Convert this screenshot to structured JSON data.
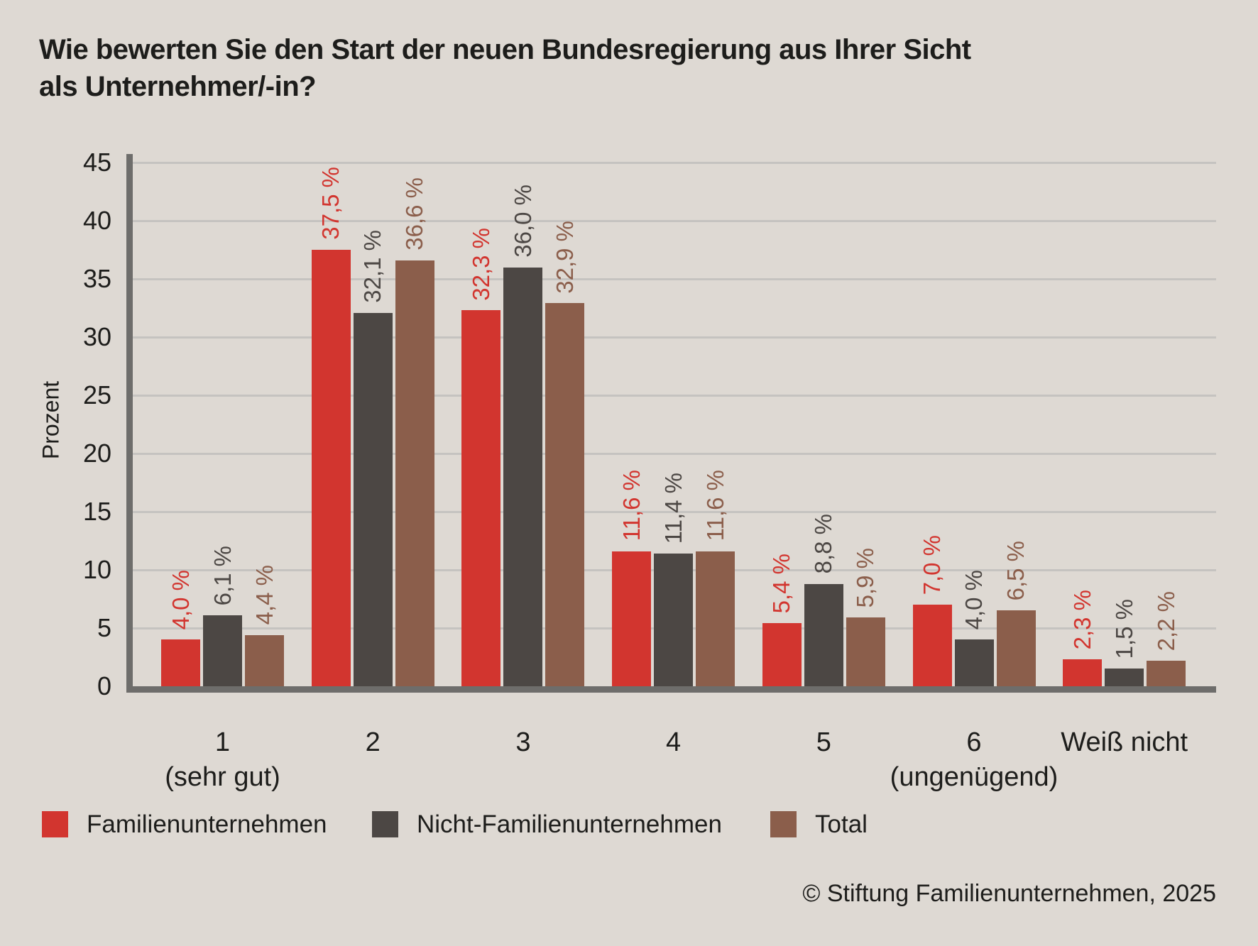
{
  "chart_data": {
    "type": "bar",
    "title": "Wie bewerten Sie den Start der neuen Bundesregierung aus Ihrer Sicht\nals Unternehmer/-in?",
    "ylabel": "Prozent",
    "ylim": [
      0,
      45
    ],
    "ytick_step": 5,
    "grid": true,
    "legend_position": "bottom",
    "categories": [
      {
        "label": "1",
        "sublabel": "(sehr gut)"
      },
      {
        "label": "2",
        "sublabel": ""
      },
      {
        "label": "3",
        "sublabel": ""
      },
      {
        "label": "4",
        "sublabel": ""
      },
      {
        "label": "5",
        "sublabel": ""
      },
      {
        "label": "6",
        "sublabel": "(ungenügend)"
      },
      {
        "label": "Weiß nicht",
        "sublabel": ""
      }
    ],
    "series": [
      {
        "name": "Familienunternehmen",
        "color": "#d2352f",
        "values": [
          4.0,
          37.5,
          32.3,
          11.6,
          5.4,
          7.0,
          2.3
        ],
        "labels": [
          "4,0 %",
          "37,5 %",
          "32,3 %",
          "11,6 %",
          "5,4 %",
          "7,0 %",
          "2,3 %"
        ]
      },
      {
        "name": "Nicht-Familienunternehmen",
        "color": "#4c4744",
        "values": [
          6.1,
          32.1,
          36.0,
          11.4,
          8.8,
          4.0,
          1.5
        ],
        "labels": [
          "6,1 %",
          "32,1 %",
          "36,0 %",
          "11,4 %",
          "8,8 %",
          "4,0 %",
          "1,5 %"
        ]
      },
      {
        "name": "Total",
        "color": "#8b5e4b",
        "values": [
          4.4,
          36.6,
          32.9,
          11.6,
          5.9,
          6.5,
          2.2
        ],
        "labels": [
          "4,4 %",
          "36,6 %",
          "32,9 %",
          "11,6 %",
          "5,9 %",
          "6,5 %",
          "2,2 %"
        ]
      }
    ]
  },
  "colors": {
    "background": "#ded9d3",
    "axis": "#6e6d6b",
    "grid": "#c5c3c0",
    "text": "#1d1d1b"
  },
  "footer": {
    "text": "© Stiftung Familienunternehmen, 2025"
  }
}
